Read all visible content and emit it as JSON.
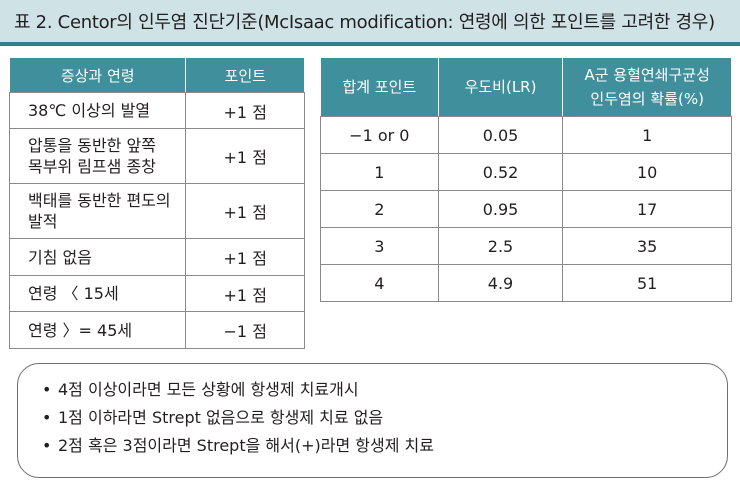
{
  "title": "표 2. Centor의 인두염 진단기준(McIsaac modification: 연령에 의한 포인트를 고려한 경우)",
  "criteria_table": {
    "headers": [
      "증상과 연령",
      "포인트"
    ],
    "rows": [
      {
        "symptom": "38℃ 이상의 발열",
        "point": "+1 점"
      },
      {
        "symptom": "압통을 동반한 앞쪽 목부위 림프샘 종창",
        "point": "+1 점"
      },
      {
        "symptom": "백태를 동반한 편도의 발적",
        "point": "+1 점"
      },
      {
        "symptom": "기침 없음",
        "point": "+1 점"
      },
      {
        "symptom": "연령 〈 15세",
        "point": "+1 점"
      },
      {
        "symptom": "연령 〉= 45세",
        "point": "−1 점"
      }
    ]
  },
  "probability_table": {
    "headers": [
      "합계 포인트",
      "우도비(LR)",
      "A군 용혈연쇄구균성 인두염의 확률(%)"
    ],
    "rows": [
      {
        "total": "−1 or 0",
        "lr": "0.05",
        "prob": "1"
      },
      {
        "total": "1",
        "lr": "0.52",
        "prob": "10"
      },
      {
        "total": "2",
        "lr": "0.95",
        "prob": "17"
      },
      {
        "total": "3",
        "lr": "2.5",
        "prob": "35"
      },
      {
        "total": "4",
        "lr": "4.9",
        "prob": "51"
      }
    ]
  },
  "notes": {
    "bullet": "•",
    "items": [
      "4점 이상이라면 모든 상황에 항생제 치료개시",
      "1점 이하라면 Strept 없음으로 항생제 치료 없음",
      "2점 혹은 3점이라면 Strept을 해서(+)라면 항생제 치료"
    ]
  },
  "colors": {
    "title_background": "#cfe2e6",
    "title_rule": "#2f7f8d",
    "header_background": "#3f8f9c",
    "grid": "#8a8a8a"
  }
}
